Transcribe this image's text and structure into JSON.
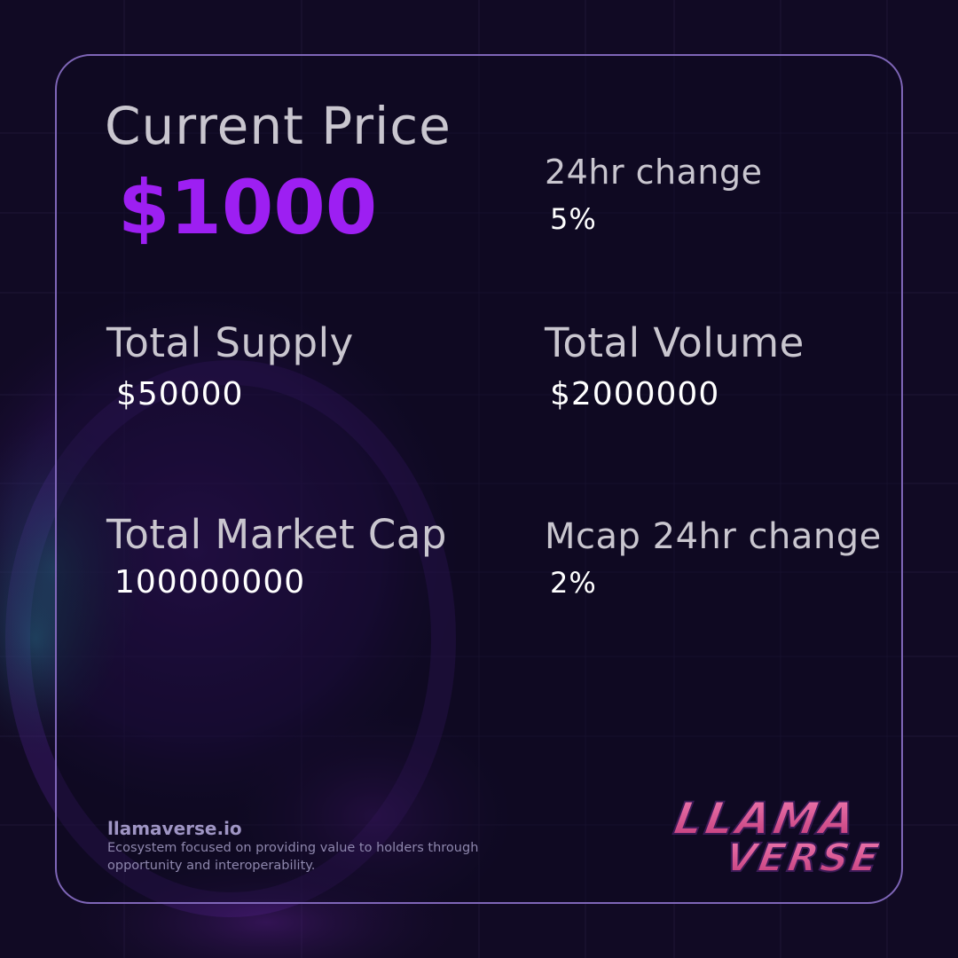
{
  "current_price": {
    "label": "Current Price",
    "value": "$1000"
  },
  "change_24hr": {
    "label": "24hr change",
    "value": "5%"
  },
  "total_supply": {
    "label": "Total Supply",
    "value": "$50000"
  },
  "total_volume": {
    "label": "Total Volume",
    "value": "$2000000"
  },
  "total_market_cap": {
    "label": "Total Market Cap",
    "value": "100000000"
  },
  "mcap_change_24hr": {
    "label": "Mcap 24hr change",
    "value": "2%"
  },
  "footer": {
    "site": "llamaverse.io",
    "description": "Ecosystem focused on providing value to holders through opportunity and interoperability."
  },
  "logo": {
    "line1": "LLAMA",
    "line2": "VERSE"
  },
  "colors": {
    "background": "#110a24",
    "card_border": "#7f66b8",
    "accent": "#9d1ff2",
    "logo_pink": "#e0588f"
  }
}
